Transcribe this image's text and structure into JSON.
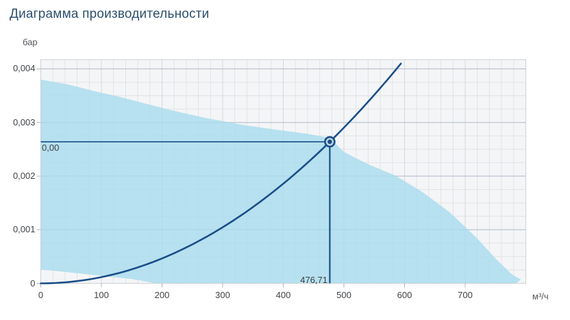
{
  "header": {
    "title": "Диаграмма производительности"
  },
  "chart_data": {
    "type": "area",
    "title": "Диаграмма производительности",
    "x_axis": {
      "unit": "м³/ч",
      "min": 0,
      "max": 800,
      "minor_step": 20,
      "tick_values": [
        0,
        100,
        200,
        300,
        400,
        500,
        600,
        700
      ],
      "tick_labels": [
        "0",
        "100",
        "200",
        "300",
        "400",
        "500",
        "600",
        "700"
      ]
    },
    "y_axis": {
      "unit": "бар",
      "min": 0,
      "max": 0.0041725,
      "minor_step": 0.00025,
      "tick_values": [
        0,
        0.001,
        0.002,
        0.003,
        0.004
      ],
      "tick_labels": [
        "0",
        "0,001",
        "0,002",
        "0,003",
        "0,004"
      ]
    },
    "operating_point": {
      "x": 476.71,
      "y": 0.00264,
      "flow_label": "476,71",
      "pressure_label": "0,00"
    },
    "series": [
      {
        "name": "operating-envelope",
        "type": "area",
        "points_upper": [
          [
            0,
            0.0038
          ],
          [
            45,
            0.00371
          ],
          [
            90,
            0.00358
          ],
          [
            130,
            0.00348
          ],
          [
            170,
            0.00336
          ],
          [
            215,
            0.00323
          ],
          [
            270,
            0.00309
          ],
          [
            330,
            0.00296
          ],
          [
            385,
            0.00287
          ],
          [
            440,
            0.00279
          ],
          [
            476.71,
            0.00271
          ],
          [
            500,
            0.00245
          ],
          [
            540,
            0.00222
          ],
          [
            585,
            0.00201
          ],
          [
            630,
            0.0017
          ],
          [
            675,
            0.00132
          ],
          [
            718,
            0.00086
          ],
          [
            752,
            0.00044
          ],
          [
            778,
            0.00016
          ],
          [
            792,
            7e-05
          ],
          [
            784,
            0
          ],
          [
            190,
            0
          ]
        ],
        "points_lower": [
          [
            150,
            8e-05
          ],
          [
            100,
            0.00014
          ],
          [
            50,
            0.0002
          ],
          [
            0,
            0.00026
          ]
        ]
      },
      {
        "name": "system-curve",
        "type": "quadratic-line",
        "x_start": 0,
        "x_end": 599,
        "passes_through": {
          "x": 476.71,
          "y": 0.00264
        }
      }
    ],
    "grid": true,
    "legend": false,
    "colors": {
      "title": "#2d506e",
      "curve": "#194e88",
      "envelope_fill": "#a7dcee",
      "plot_bg": "#f4f5f7",
      "grid_minor": "#e2e3e6",
      "grid_major_h": "#bac4ce",
      "grid_major_v": "#d4d6da",
      "border": "#cdd0d4",
      "tick": "#b0b3b7",
      "label": "#3f4246",
      "marker_ring_fill": "#bdd3e0"
    }
  }
}
